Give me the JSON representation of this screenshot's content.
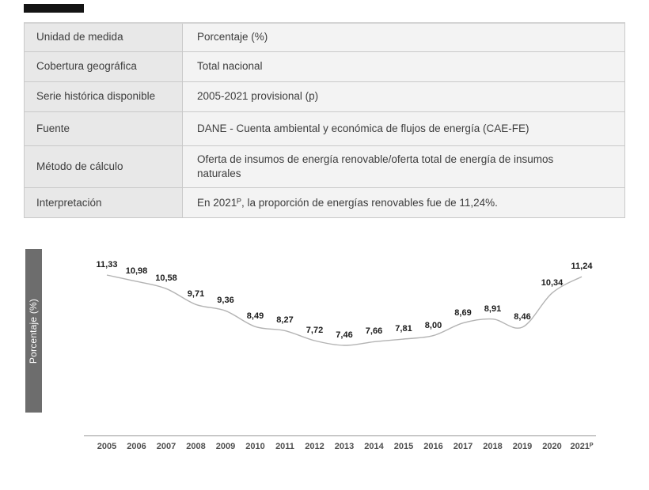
{
  "table": {
    "rows": [
      {
        "label": "Unidad de medida",
        "value": "Porcentaje (%)"
      },
      {
        "label": "Cobertura geográfica",
        "value": "Total nacional"
      },
      {
        "label": "Serie histórica disponible",
        "value": "2005-2021 provisional (p)"
      },
      {
        "label": "Fuente",
        "value": "DANE - Cuenta ambiental y económica de flujos de energía (CAE-FE)"
      },
      {
        "label": "Método de cálculo",
        "value": "Oferta de insumos de energía renovable/oferta total de energía de insumos naturales"
      },
      {
        "label": "Interpretación",
        "value": "En 2021ᴾ, la proporción de energías renovables fue de 11,24%."
      }
    ]
  },
  "chart_data": {
    "type": "line",
    "title": "",
    "xlabel": "",
    "ylabel": "Porcentaje (%)",
    "categories": [
      "2005",
      "2006",
      "2007",
      "2008",
      "2009",
      "2010",
      "2011",
      "2012",
      "2013",
      "2014",
      "2015",
      "2016",
      "2017",
      "2018",
      "2019",
      "2020",
      "2021ᴾ"
    ],
    "values": [
      11.33,
      10.98,
      10.58,
      9.71,
      9.36,
      8.49,
      8.27,
      7.72,
      7.46,
      7.66,
      7.81,
      8.0,
      8.69,
      8.91,
      8.46,
      10.34,
      11.24
    ],
    "value_labels": [
      "11,33",
      "10,98",
      "10,58",
      "9,71",
      "9,36",
      "8,49",
      "8,27",
      "7,72",
      "7,46",
      "7,66",
      "7,81",
      "8,00",
      "8,69",
      "8,91",
      "8,46",
      "10,34",
      "11,24"
    ],
    "grid": false,
    "legend": false,
    "y_axis_ticks_visible": false,
    "line_color": "#b3b3b3",
    "value_label_color": "#1a1a1a",
    "x_label_color": "#4f4f4f",
    "ylabel_bar_color": "#6d6d6d"
  },
  "colors": {
    "table_label_bg": "#e8e8e8",
    "table_value_bg": "#f3f3f3",
    "table_border": "#c9c9c9",
    "header_strip": "#141414",
    "axis_line": "#979797"
  }
}
